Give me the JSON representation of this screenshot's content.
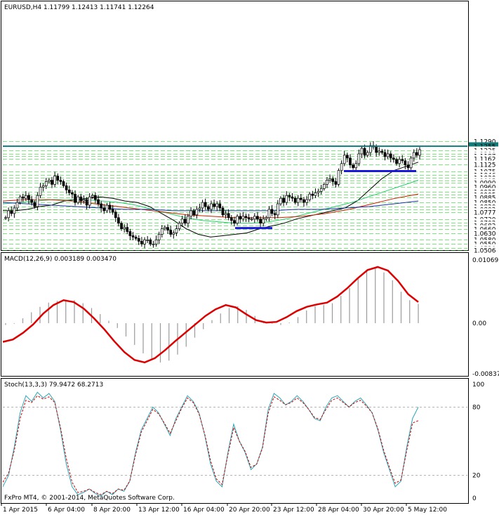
{
  "chart_data": [
    {
      "type": "candlestick",
      "title": "EURUSD,H4  1.11799 1.12413 1.11741 1.12264",
      "ylim": [
        1.0506,
        1.2294
      ],
      "price_labels": [
        "1.1290",
        "1.1255",
        "1.1225",
        "1.1200",
        "1.1187",
        "1.1162",
        "1.1125",
        "1.1075",
        "1.1046",
        "1.1030",
        "1.1005",
        "1.0990",
        "1.0960",
        "1.0925",
        "1.0905",
        "1.0885",
        "1.0850",
        "1.0820",
        "1.0802",
        "1.0777",
        "1.0730",
        "1.0702",
        "1.0682",
        "1.0660",
        "1.0630",
        "1.0580",
        "1.0550",
        "1.0520",
        "1.0506"
      ],
      "highlight_label": "1.1255",
      "x_labels": [
        "1 Apr 2015",
        "6 Apr 04:00",
        "8 Apr 20:00",
        "13 Apr 12:00",
        "16 Apr 04:00",
        "20 Apr 20:00",
        "23 Apr 12:00",
        "28 Apr 04:00",
        "30 Apr 20:00",
        "5 May 12:00"
      ],
      "close_series": [
        1.074,
        1.079,
        1.077,
        1.081,
        1.085,
        1.089,
        1.088,
        1.09,
        1.087,
        1.085,
        1.082,
        1.09,
        1.096,
        1.097,
        1.1,
        1.101,
        1.098,
        1.104,
        1.101,
        1.1,
        1.097,
        1.094,
        1.092,
        1.091,
        1.085,
        1.089,
        1.086,
        1.087,
        1.083,
        1.089,
        1.09,
        1.087,
        1.084,
        1.081,
        1.079,
        1.083,
        1.08,
        1.078,
        1.074,
        1.07,
        1.066,
        1.067,
        1.064,
        1.061,
        1.06,
        1.059,
        1.057,
        1.055,
        1.058,
        1.058,
        1.055,
        1.055,
        1.058,
        1.062,
        1.066,
        1.067,
        1.065,
        1.062,
        1.063,
        1.066,
        1.07,
        1.073,
        1.07,
        1.075,
        1.079,
        1.076,
        1.08,
        1.081,
        1.085,
        1.082,
        1.08,
        1.084,
        1.082,
        1.084,
        1.081,
        1.076,
        1.077,
        1.074,
        1.072,
        1.07,
        1.075,
        1.073,
        1.075,
        1.074,
        1.073,
        1.073,
        1.075,
        1.073,
        1.07,
        1.073,
        1.074,
        1.08,
        1.077,
        1.076,
        1.084,
        1.088,
        1.085,
        1.09,
        1.089,
        1.088,
        1.085,
        1.088,
        1.087,
        1.085,
        1.087,
        1.091,
        1.09,
        1.092,
        1.093,
        1.095,
        1.098,
        1.101,
        1.102,
        1.1,
        1.098,
        1.108,
        1.113,
        1.119,
        1.117,
        1.112,
        1.11,
        1.113,
        1.12,
        1.124,
        1.119,
        1.121,
        1.126,
        1.125,
        1.121,
        1.122,
        1.121,
        1.118,
        1.12,
        1.117,
        1.116,
        1.113,
        1.116,
        1.115,
        1.112,
        1.11,
        1.117,
        1.121,
        1.119,
        1.123
      ],
      "moving_averages": [
        {
          "color": "#000000",
          "values": [
            1.079,
            1.079,
            1.08,
            1.082,
            1.083,
            1.086,
            1.087,
            1.088,
            1.089,
            1.088,
            1.086,
            1.085,
            1.082,
            1.077,
            1.072,
            1.066,
            1.062,
            1.06,
            1.061,
            1.062,
            1.063,
            1.066,
            1.068,
            1.07,
            1.073,
            1.075,
            1.077,
            1.079,
            1.081,
            1.086,
            1.094,
            1.102,
            1.108,
            1.111,
            1.114
          ]
        },
        {
          "color": "#2ecc71",
          "values": [
            1.084,
            1.085,
            1.086,
            1.087,
            1.087,
            1.087,
            1.086,
            1.085,
            1.083,
            1.08,
            1.077,
            1.074,
            1.072,
            1.071,
            1.07,
            1.07,
            1.071,
            1.073,
            1.076,
            1.079,
            1.082,
            1.085,
            1.089,
            1.093,
            1.097,
            1.101
          ]
        },
        {
          "color": "#cc2200",
          "values": [
            1.086,
            1.087,
            1.087,
            1.086,
            1.084,
            1.082,
            1.08,
            1.078,
            1.076,
            1.075,
            1.074,
            1.074,
            1.074,
            1.075,
            1.077,
            1.08,
            1.084,
            1.088,
            1.091
          ]
        },
        {
          "color": "#1f2fae",
          "values": [
            1.085,
            1.084,
            1.083,
            1.082,
            1.081,
            1.08,
            1.08,
            1.079,
            1.079,
            1.079,
            1.079,
            1.079,
            1.08,
            1.08,
            1.081,
            1.082,
            1.084,
            1.086
          ]
        }
      ],
      "support_lines": [
        {
          "price": 1.1255,
          "color": "#137a7a"
        },
        {
          "price": 1.1076,
          "color": "#1a1adb"
        },
        {
          "price": 1.0665,
          "color": "#1a1adb"
        }
      ]
    },
    {
      "type": "bar",
      "title": "MACD(12,26,9) 0.003189 0.003470",
      "ylim": [
        -0.008378,
        0.010692
      ],
      "y_labels": [
        "0.010692",
        "0.00",
        "-0.008378"
      ],
      "histogram": [
        -0.0003,
        -0.0001,
        0.0008,
        0.0018,
        0.0027,
        0.0034,
        0.0037,
        0.0039,
        0.0038,
        0.0033,
        0.0025,
        0.0015,
        0.0004,
        -0.0008,
        -0.0022,
        -0.0036,
        -0.005,
        -0.0061,
        -0.0065,
        -0.0062,
        -0.0052,
        -0.0039,
        -0.0024,
        -0.001,
        0.0005,
        0.0016,
        0.0025,
        0.0028,
        0.0022,
        0.0012,
        0.0002,
        -0.0001,
        -0.0003,
        0.0001,
        0.001,
        0.0021,
        0.0028,
        0.003,
        0.0033,
        0.0045,
        0.0058,
        0.0074,
        0.0086,
        0.0092,
        0.0084,
        0.0071,
        0.0052,
        0.0038,
        0.0032
      ],
      "signal": [
        -0.0031,
        -0.0027,
        -0.0016,
        -0.0002,
        0.0016,
        0.003,
        0.0038,
        0.0035,
        0.0024,
        0.0008,
        -0.001,
        -0.003,
        -0.0048,
        -0.0061,
        -0.0065,
        -0.0058,
        -0.0045,
        -0.003,
        -0.0016,
        -0.0002,
        0.0012,
        0.0023,
        0.003,
        0.0026,
        0.0015,
        0.0005,
        0.0001,
        0.0002,
        0.001,
        0.002,
        0.0027,
        0.0031,
        0.0034,
        0.0044,
        0.0058,
        0.0074,
        0.0088,
        0.0093,
        0.0087,
        0.007,
        0.0048,
        0.0035
      ]
    },
    {
      "type": "line",
      "title": "Stoch(13,3,3) 79.9472 68.2713",
      "ylim": [
        0,
        100
      ],
      "y_labels": [
        "100",
        "80",
        "20",
        "0"
      ],
      "series": [
        {
          "color": "#2aa8b8",
          "values": [
            10,
            20,
            45,
            75,
            90,
            85,
            93,
            88,
            92,
            85,
            60,
            30,
            10,
            3,
            5,
            8,
            4,
            2,
            6,
            3,
            8,
            6,
            15,
            40,
            60,
            70,
            80,
            75,
            65,
            55,
            70,
            80,
            90,
            85,
            75,
            55,
            30,
            15,
            10,
            40,
            65,
            50,
            40,
            25,
            30,
            45,
            78,
            92,
            88,
            82,
            85,
            90,
            85,
            78,
            70,
            68,
            80,
            88,
            90,
            85,
            80,
            85,
            88,
            82,
            75,
            60,
            40,
            25,
            10,
            15,
            45,
            70,
            80
          ]
        },
        {
          "color": "#cc0000",
          "values": [
            14,
            22,
            42,
            70,
            86,
            84,
            90,
            87,
            89,
            84,
            62,
            35,
            14,
            5,
            6,
            8,
            5,
            3,
            6,
            4,
            8,
            7,
            15,
            38,
            58,
            68,
            78,
            74,
            66,
            57,
            68,
            79,
            88,
            84,
            74,
            56,
            33,
            17,
            12,
            38,
            62,
            50,
            41,
            27,
            30,
            44,
            75,
            89,
            86,
            82,
            84,
            88,
            84,
            78,
            71,
            69,
            78,
            86,
            88,
            84,
            80,
            84,
            86,
            81,
            75,
            61,
            42,
            27,
            13,
            16,
            42,
            66,
            68
          ]
        }
      ]
    }
  ],
  "footer": {
    "copyright": "FxPro MT4, © 2001-2014, MetaQuotes Software Corp."
  },
  "colors": {
    "bg": "#ffffff",
    "grid": "#00cc00",
    "bull_body": "#ffffff",
    "bear_body": "#000000"
  }
}
